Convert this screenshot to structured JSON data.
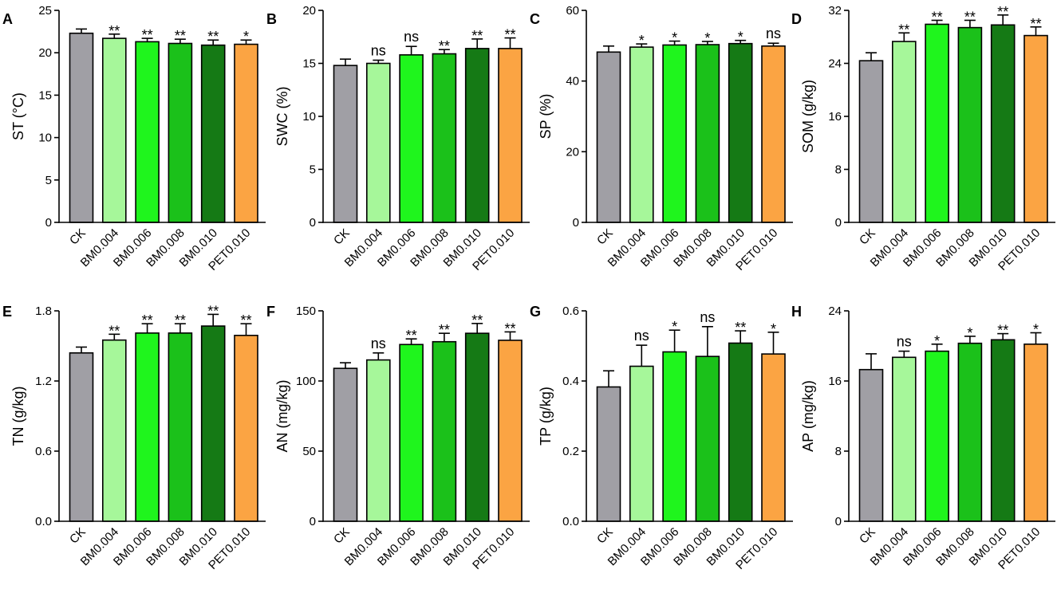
{
  "colors": {
    "CK": "#a09fa5",
    "BM0.004": "#a6f79a",
    "BM0.006": "#1ff51d",
    "BM0.008": "#1bc11a",
    "BM0.010": "#157a15",
    "PET0.010": "#fba443",
    "axis": "#000000"
  },
  "chart_data": [
    {
      "type": "bar",
      "panel": "A",
      "ylabel": "ST (°C)",
      "categories": [
        "CK",
        "BM0.004",
        "BM0.006",
        "BM0.008",
        "BM0.010",
        "PET0.010"
      ],
      "values": [
        22.3,
        21.7,
        21.3,
        21.1,
        20.9,
        21.0
      ],
      "errors": [
        0.5,
        0.5,
        0.4,
        0.5,
        0.6,
        0.5
      ],
      "significance": [
        "",
        "**",
        "**",
        "**",
        "**",
        "*"
      ],
      "ylim": [
        0,
        25
      ],
      "yticks": [
        0,
        5,
        10,
        15,
        20,
        25
      ],
      "ytick_labels": [
        "0",
        "5",
        "10",
        "15",
        "20",
        "25"
      ]
    },
    {
      "type": "bar",
      "panel": "B",
      "ylabel": "SWC (%)",
      "categories": [
        "CK",
        "BM0.004",
        "BM0.006",
        "BM0.008",
        "BM0.010",
        "PET0.010"
      ],
      "values": [
        14.8,
        15.0,
        15.8,
        15.9,
        16.4,
        16.4
      ],
      "errors": [
        0.6,
        0.3,
        0.8,
        0.4,
        0.9,
        1.0
      ],
      "significance": [
        "",
        "ns",
        "ns",
        "**",
        "**",
        "**"
      ],
      "ylim": [
        0,
        20
      ],
      "yticks": [
        0,
        5,
        10,
        15,
        20
      ],
      "ytick_labels": [
        "0",
        "5",
        "10",
        "15",
        "20"
      ]
    },
    {
      "type": "bar",
      "panel": "C",
      "ylabel": "SP (%)",
      "categories": [
        "CK",
        "BM0.004",
        "BM0.006",
        "BM0.008",
        "BM0.010",
        "PET0.010"
      ],
      "values": [
        48.2,
        49.6,
        50.2,
        50.3,
        50.6,
        49.9
      ],
      "errors": [
        1.7,
        0.9,
        1.1,
        0.9,
        0.9,
        0.8
      ],
      "significance": [
        "",
        "*",
        "*",
        "*",
        "*",
        "ns"
      ],
      "ylim": [
        0,
        60
      ],
      "yticks": [
        0,
        20,
        40,
        60
      ],
      "ytick_labels": [
        "0",
        "20",
        "40",
        "60"
      ]
    },
    {
      "type": "bar",
      "panel": "D",
      "ylabel": "SOM (g/kg)",
      "categories": [
        "CK",
        "BM0.004",
        "BM0.006",
        "BM0.008",
        "BM0.010",
        "PET0.010"
      ],
      "values": [
        24.4,
        27.3,
        29.9,
        29.4,
        29.8,
        28.2
      ],
      "errors": [
        1.2,
        1.3,
        0.6,
        1.1,
        1.5,
        1.3
      ],
      "significance": [
        "",
        "**",
        "**",
        "**",
        "**",
        "**"
      ],
      "ylim": [
        0,
        32
      ],
      "yticks": [
        0,
        8,
        16,
        24,
        32
      ],
      "ytick_labels": [
        "0",
        "8",
        "16",
        "24",
        "32"
      ]
    },
    {
      "type": "bar",
      "panel": "E",
      "ylabel": "TN (g/kg)",
      "categories": [
        "CK",
        "BM0.004",
        "BM0.006",
        "BM0.008",
        "BM0.010",
        "PET0.010"
      ],
      "values": [
        1.44,
        1.55,
        1.61,
        1.61,
        1.67,
        1.59
      ],
      "errors": [
        0.05,
        0.05,
        0.08,
        0.08,
        0.1,
        0.1
      ],
      "significance": [
        "",
        "**",
        "**",
        "**",
        "**",
        "**"
      ],
      "ylim": [
        0,
        1.8
      ],
      "yticks": [
        0,
        0.6,
        1.2,
        1.8
      ],
      "ytick_labels": [
        "0.0",
        "0.6",
        "1.2",
        "1.8"
      ]
    },
    {
      "type": "bar",
      "panel": "F",
      "ylabel": "AN (mg/kg)",
      "categories": [
        "CK",
        "BM0.004",
        "BM0.006",
        "BM0.008",
        "BM0.010",
        "PET0.010"
      ],
      "values": [
        109,
        115,
        126,
        128,
        134,
        129
      ],
      "errors": [
        4,
        5,
        4,
        6,
        7,
        6
      ],
      "significance": [
        "",
        "ns",
        "**",
        "**",
        "**",
        "**"
      ],
      "ylim": [
        0,
        150
      ],
      "yticks": [
        0,
        50,
        100,
        150
      ],
      "ytick_labels": [
        "0",
        "50",
        "100",
        "150"
      ]
    },
    {
      "type": "bar",
      "panel": "G",
      "ylabel": "TP (g/kg)",
      "categories": [
        "CK",
        "BM0.004",
        "BM0.006",
        "BM0.008",
        "BM0.010",
        "PET0.010"
      ],
      "values": [
        0.383,
        0.442,
        0.483,
        0.47,
        0.508,
        0.477
      ],
      "errors": [
        0.046,
        0.06,
        0.062,
        0.085,
        0.035,
        0.062
      ],
      "significance": [
        "",
        "ns",
        "*",
        "ns",
        "**",
        "*"
      ],
      "ylim": [
        0,
        0.6
      ],
      "yticks": [
        0,
        0.2,
        0.4,
        0.6
      ],
      "ytick_labels": [
        "0.0",
        "0.2",
        "0.4",
        "0.6"
      ]
    },
    {
      "type": "bar",
      "panel": "H",
      "ylabel": "AP (mg/kg)",
      "categories": [
        "CK",
        "BM0.004",
        "BM0.006",
        "BM0.008",
        "BM0.010",
        "PET0.010"
      ],
      "values": [
        17.3,
        18.7,
        19.4,
        20.3,
        20.7,
        20.2
      ],
      "errors": [
        1.8,
        0.7,
        0.8,
        0.8,
        0.7,
        1.3
      ],
      "significance": [
        "",
        "ns",
        "*",
        "*",
        "**",
        "*"
      ],
      "ylim": [
        0,
        24
      ],
      "yticks": [
        0,
        8,
        16,
        24
      ],
      "ytick_labels": [
        "0",
        "8",
        "16",
        "24"
      ]
    }
  ]
}
